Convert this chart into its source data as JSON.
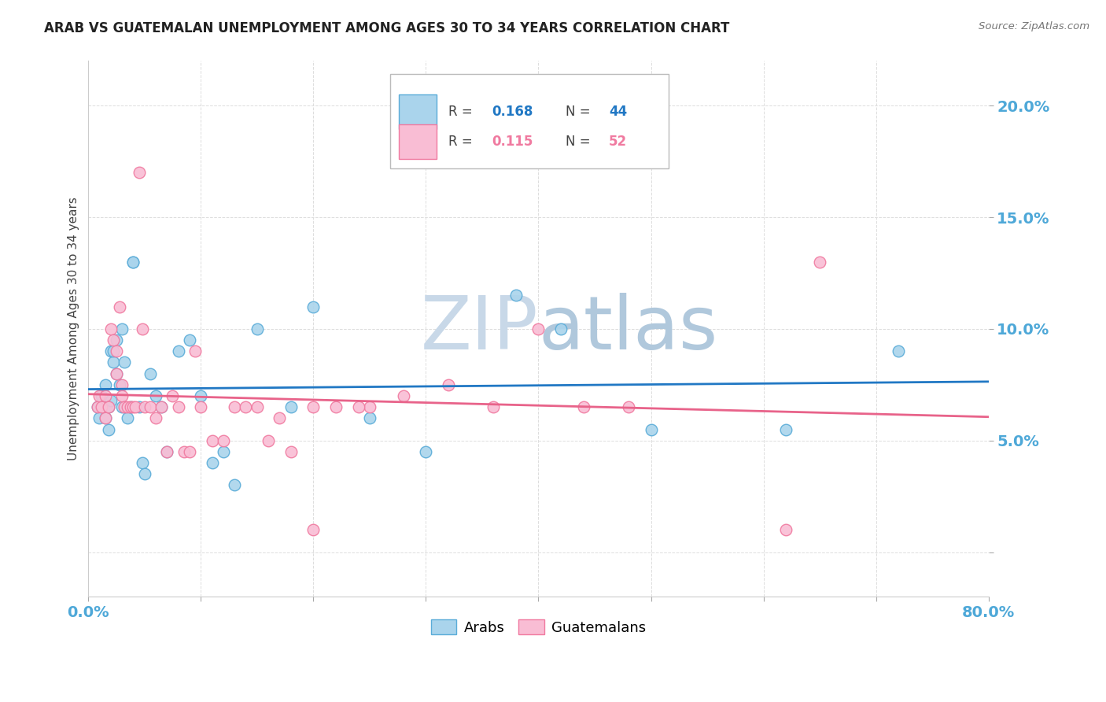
{
  "title": "ARAB VS GUATEMALAN UNEMPLOYMENT AMONG AGES 30 TO 34 YEARS CORRELATION CHART",
  "source": "Source: ZipAtlas.com",
  "ylabel": "Unemployment Among Ages 30 to 34 years",
  "xlim": [
    0.0,
    0.8
  ],
  "ylim": [
    -0.02,
    0.22
  ],
  "arab_color": "#aad4ec",
  "guatemalan_color": "#f9bdd4",
  "arab_edge_color": "#5aacd8",
  "guatemalan_edge_color": "#f07aa0",
  "trend_arab_color": "#2178c4",
  "trend_guatemalan_color": "#e8638a",
  "watermark_color": "#c8d8e8",
  "arab_x": [
    0.008,
    0.01,
    0.012,
    0.015,
    0.015,
    0.018,
    0.018,
    0.02,
    0.02,
    0.022,
    0.022,
    0.025,
    0.025,
    0.028,
    0.03,
    0.03,
    0.032,
    0.035,
    0.038,
    0.04,
    0.04,
    0.045,
    0.048,
    0.05,
    0.055,
    0.06,
    0.065,
    0.07,
    0.08,
    0.09,
    0.1,
    0.11,
    0.12,
    0.13,
    0.15,
    0.18,
    0.2,
    0.25,
    0.3,
    0.38,
    0.42,
    0.5,
    0.62,
    0.72
  ],
  "arab_y": [
    0.065,
    0.06,
    0.07,
    0.075,
    0.06,
    0.065,
    0.055,
    0.068,
    0.09,
    0.085,
    0.09,
    0.08,
    0.095,
    0.075,
    0.1,
    0.065,
    0.085,
    0.06,
    0.065,
    0.13,
    0.13,
    0.065,
    0.04,
    0.035,
    0.08,
    0.07,
    0.065,
    0.045,
    0.09,
    0.095,
    0.07,
    0.04,
    0.045,
    0.03,
    0.1,
    0.065,
    0.11,
    0.06,
    0.045,
    0.115,
    0.1,
    0.055,
    0.055,
    0.09
  ],
  "guatemalan_x": [
    0.008,
    0.01,
    0.012,
    0.015,
    0.015,
    0.018,
    0.02,
    0.022,
    0.025,
    0.025,
    0.028,
    0.03,
    0.03,
    0.032,
    0.035,
    0.038,
    0.04,
    0.042,
    0.045,
    0.048,
    0.05,
    0.055,
    0.06,
    0.065,
    0.07,
    0.075,
    0.08,
    0.085,
    0.09,
    0.095,
    0.1,
    0.11,
    0.12,
    0.13,
    0.14,
    0.15,
    0.16,
    0.17,
    0.18,
    0.2,
    0.22,
    0.25,
    0.28,
    0.32,
    0.36,
    0.4,
    0.44,
    0.48,
    0.2,
    0.24,
    0.62,
    0.65
  ],
  "guatemalan_y": [
    0.065,
    0.07,
    0.065,
    0.06,
    0.07,
    0.065,
    0.1,
    0.095,
    0.09,
    0.08,
    0.11,
    0.075,
    0.07,
    0.065,
    0.065,
    0.065,
    0.065,
    0.065,
    0.17,
    0.1,
    0.065,
    0.065,
    0.06,
    0.065,
    0.045,
    0.07,
    0.065,
    0.045,
    0.045,
    0.09,
    0.065,
    0.05,
    0.05,
    0.065,
    0.065,
    0.065,
    0.05,
    0.06,
    0.045,
    0.065,
    0.065,
    0.065,
    0.07,
    0.075,
    0.065,
    0.1,
    0.065,
    0.065,
    0.01,
    0.065,
    0.01,
    0.13
  ]
}
